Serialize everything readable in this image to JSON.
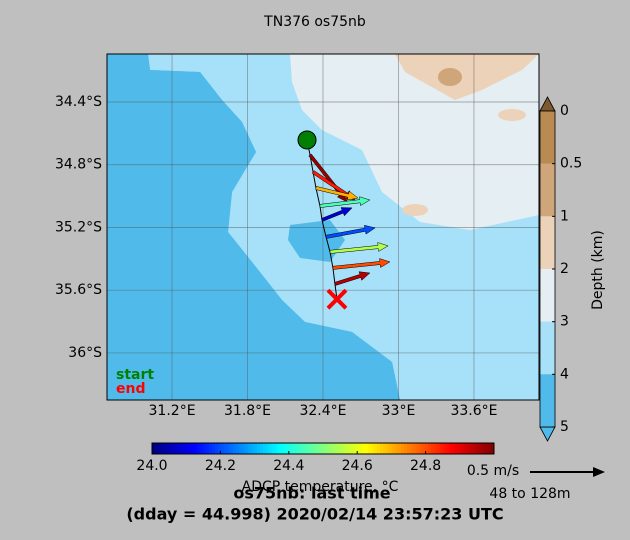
{
  "chart_data": {
    "type": "vector-map",
    "title": "TN376 os75nb",
    "xlim": [
      30.683,
      34.117
    ],
    "ylim": [
      -36.3,
      -34.094
    ],
    "xticks": [
      {
        "value": 31.2,
        "label": "31.2°E"
      },
      {
        "value": 31.8,
        "label": "31.8°E"
      },
      {
        "value": 32.4,
        "label": "32.4°E"
      },
      {
        "value": 33.0,
        "label": "33°E"
      },
      {
        "value": 33.6,
        "label": "33.6°E"
      }
    ],
    "yticks": [
      {
        "value": -34.4,
        "label": "34.4°S"
      },
      {
        "value": -34.8,
        "label": "34.8°S"
      },
      {
        "value": -35.2,
        "label": "35.2°S"
      },
      {
        "value": -35.6,
        "label": "35.6°S"
      },
      {
        "value": -36.0,
        "label": "36°S"
      }
    ],
    "grid": true,
    "start": {
      "label": "start",
      "lon": 32.273,
      "lat": -34.642,
      "color": "#008000"
    },
    "end": {
      "label": "end",
      "lon": 32.511,
      "lat": -35.657,
      "color": "#ff0000"
    },
    "vectors": [
      {
        "lon": 32.297,
        "lat": -34.738,
        "u": 0.247,
        "v": -0.313,
        "temp": 24.98
      },
      {
        "lon": 32.321,
        "lat": -34.846,
        "u": 0.28,
        "v": -0.187,
        "temp": 24.85
      },
      {
        "lon": 32.344,
        "lat": -34.948,
        "u": 0.28,
        "v": -0.067,
        "temp": 24.7
      },
      {
        "lon": 32.376,
        "lat": -35.063,
        "u": 0.333,
        "v": 0.04,
        "temp": 24.45
      },
      {
        "lon": 32.392,
        "lat": -35.152,
        "u": 0.2,
        "v": 0.08,
        "temp": 24.08
      },
      {
        "lon": 32.424,
        "lat": -35.26,
        "u": 0.327,
        "v": 0.06,
        "temp": 24.2
      },
      {
        "lon": 32.456,
        "lat": -35.356,
        "u": 0.387,
        "v": 0.04,
        "temp": 24.55
      },
      {
        "lon": 32.479,
        "lat": -35.458,
        "u": 0.38,
        "v": 0.04,
        "temp": 24.8
      },
      {
        "lon": 32.495,
        "lat": -35.56,
        "u": 0.233,
        "v": 0.073,
        "temp": 24.95
      }
    ],
    "temperature_colorbar": {
      "label": "ADCP temperature, °C",
      "clim": [
        24.0,
        25.0
      ],
      "ticks": [
        {
          "value": 24.0,
          "label": "24.0"
        },
        24.2,
        24.4,
        24.6,
        24.8
      ]
    },
    "depth_colorbar": {
      "label": "Depth (km)",
      "ticks": [
        0,
        0.5,
        1,
        2,
        3,
        4,
        5
      ],
      "colors": [
        "#b98a52",
        "#cfa57a",
        "#ecd2b8",
        "#e6eef3",
        "#a8e0f8",
        "#50baea"
      ],
      "over": "#7d5a30",
      "under": "#50baea"
    },
    "reference": {
      "label": "0.5 m/s",
      "speed": 0.5
    },
    "depth_range": "48 to 128m",
    "subtitle": "os75nb: last time",
    "time_label": "(dday = 44.998) 2020/02/14 23:57:23 UTC"
  }
}
